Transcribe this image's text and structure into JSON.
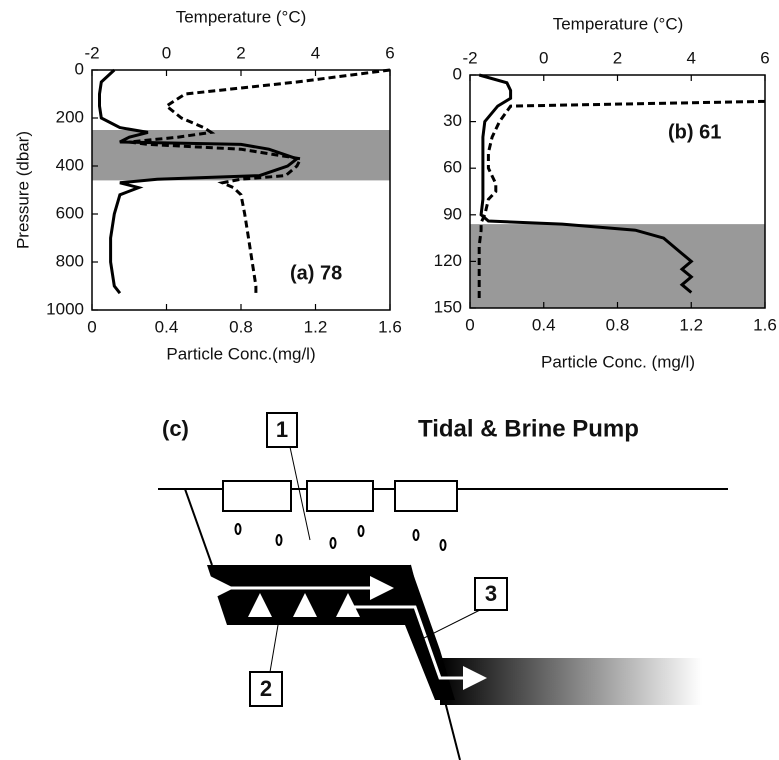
{
  "chart_data": [
    {
      "type": "line",
      "x2label": "Temperature (°C)",
      "xlabel": "Particle Conc.(mg/l)",
      "ylabel": "Pressure (dbar)",
      "annotation": "(a) 78",
      "xlim": [
        0,
        1.6
      ],
      "xticks": [
        0,
        0.4,
        0.8,
        1.2,
        1.6
      ],
      "x2lim": [
        -2,
        6
      ],
      "x2ticks": [
        -2,
        0,
        2,
        4,
        6
      ],
      "ylim": [
        1000,
        0
      ],
      "yticks": [
        0,
        200,
        400,
        600,
        800,
        1000
      ],
      "shade": [
        250,
        460
      ],
      "shade_color": "#999999",
      "series": [
        {
          "color": "#000000",
          "dashed": false,
          "axis": "x",
          "pressure": [
            0,
            50,
            100,
            150,
            200,
            240,
            260,
            280,
            300,
            310,
            330,
            370,
            400,
            440,
            455,
            470,
            490,
            520,
            600,
            700,
            800,
            900,
            930
          ],
          "values": [
            0.12,
            0.05,
            0.04,
            0.04,
            0.05,
            0.15,
            0.3,
            0.2,
            0.15,
            0.8,
            0.95,
            1.1,
            1.05,
            0.9,
            0.35,
            0.15,
            0.25,
            0.15,
            0.12,
            0.1,
            0.1,
            0.12,
            0.15
          ]
        },
        {
          "color": "#000000",
          "dashed": true,
          "axis": "x2",
          "pressure": [
            0,
            50,
            100,
            150,
            200,
            240,
            260,
            280,
            300,
            310,
            330,
            370,
            400,
            440,
            455,
            470,
            490,
            520,
            600,
            700,
            800,
            900,
            930
          ],
          "values": [
            6,
            3.5,
            0.5,
            0,
            0.4,
            1.0,
            1.2,
            0.3,
            -1.0,
            -0.5,
            2.0,
            3.6,
            3.5,
            3.2,
            2.0,
            1.5,
            1.8,
            2.0,
            2.1,
            2.2,
            2.3,
            2.4,
            2.4
          ]
        }
      ]
    },
    {
      "type": "line",
      "x2label": "Temperature (°C)",
      "xlabel": "Particle Conc. (mg/l)",
      "annotation": "(b) 61",
      "xlim": [
        0,
        1.6
      ],
      "xticks": [
        0,
        0.4,
        0.8,
        1.2,
        1.6
      ],
      "x2lim": [
        -2,
        6
      ],
      "x2ticks": [
        -2,
        0,
        2,
        4,
        6
      ],
      "ylim": [
        150,
        0
      ],
      "yticks": [
        0,
        30,
        60,
        90,
        120,
        150
      ],
      "shade": [
        96,
        150
      ],
      "shade_color": "#999999",
      "series": [
        {
          "color": "#000000",
          "dashed": false,
          "axis": "x",
          "pressure": [
            0,
            5,
            10,
            15,
            20,
            30,
            40,
            60,
            80,
            90,
            94,
            96,
            100,
            105,
            110,
            115,
            120,
            125,
            130,
            135,
            140
          ],
          "values": [
            0.05,
            0.2,
            0.22,
            0.22,
            0.15,
            0.08,
            0.07,
            0.07,
            0.07,
            0.06,
            0.1,
            0.5,
            0.9,
            1.05,
            1.1,
            1.15,
            1.2,
            1.15,
            1.2,
            1.15,
            1.2
          ]
        },
        {
          "color": "#000000",
          "dashed": true,
          "axis": "x2",
          "pressure": [
            17,
            20,
            30,
            40,
            50,
            60,
            70,
            75,
            80,
            90,
            95,
            100,
            110,
            120,
            130,
            140,
            145
          ],
          "values": [
            6,
            -0.9,
            -1.2,
            -1.4,
            -1.5,
            -1.5,
            -1.3,
            -1.3,
            -1.5,
            -1.6,
            -1.7,
            -1.7,
            -1.75,
            -1.75,
            -1.75,
            -1.75,
            -1.75
          ]
        }
      ]
    }
  ],
  "diagram": {
    "panel": "(c)",
    "title": "Tidal & Brine Pump",
    "labels": [
      "1",
      "2",
      "3"
    ]
  }
}
